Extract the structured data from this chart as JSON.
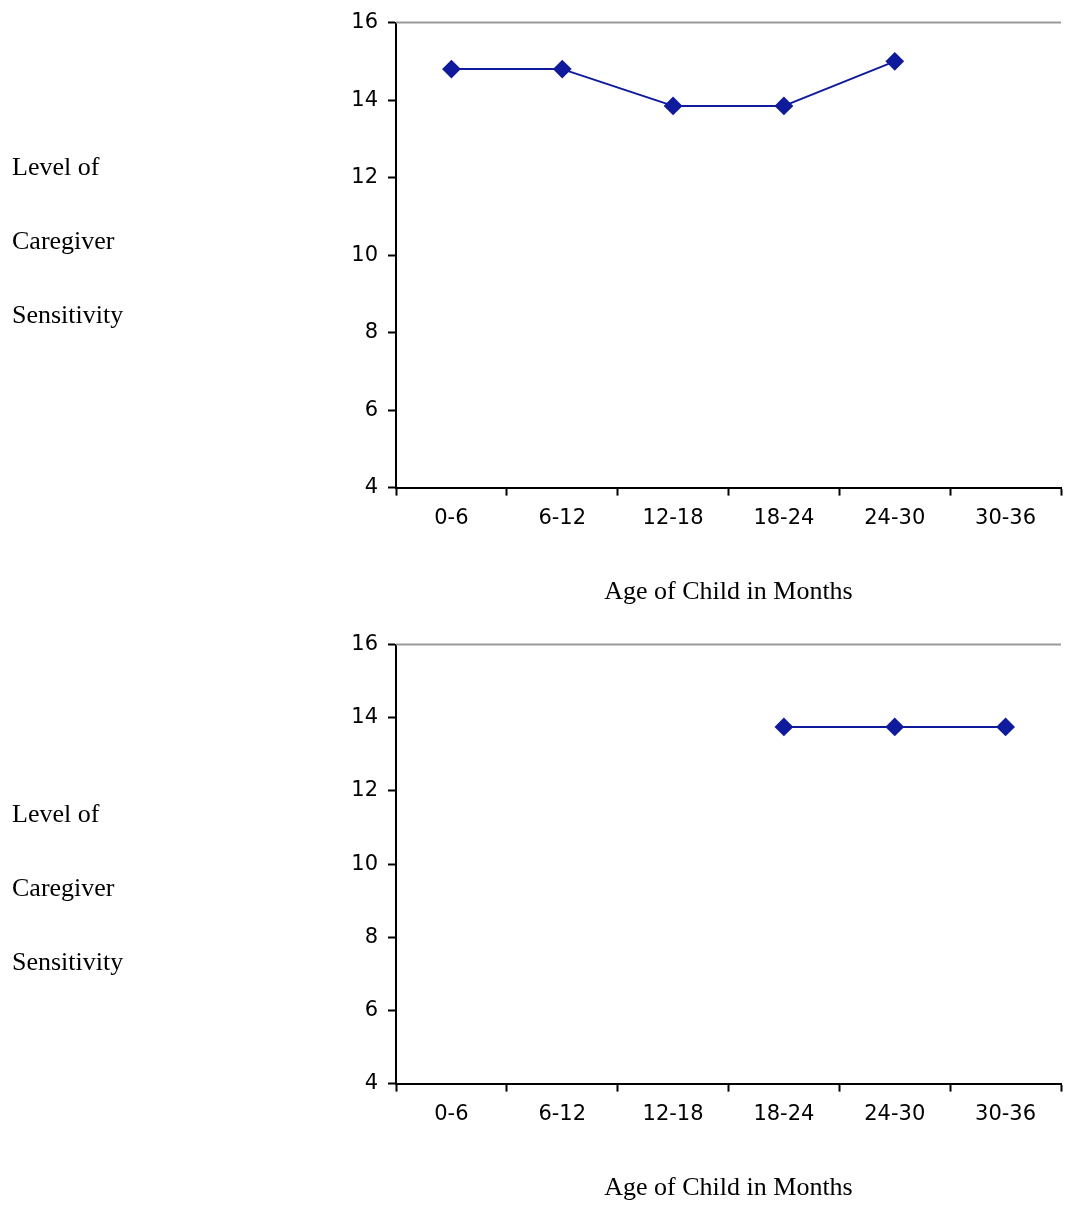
{
  "chart_data": [
    {
      "type": "line",
      "xlabel": "Age of Child in Months",
      "ylabel": "Level of Caregiver Sensitivity",
      "categories": [
        "0-6",
        "6-12",
        "12-18",
        "18-24",
        "24-30",
        "30-36"
      ],
      "ylim": [
        4,
        16
      ],
      "yticks": [
        4,
        6,
        8,
        10,
        12,
        14,
        16
      ],
      "marker": "diamond",
      "series": [
        {
          "color": "#0f1b9c",
          "values": [
            14.8,
            14.8,
            13.85,
            13.85,
            15.0,
            null
          ]
        }
      ]
    },
    {
      "type": "line",
      "xlabel": "Age of Child in Months",
      "ylabel": "Level of Caregiver Sensitivity",
      "categories": [
        "0-6",
        "6-12",
        "12-18",
        "18-24",
        "24-30",
        "30-36"
      ],
      "ylim": [
        4,
        16
      ],
      "yticks": [
        4,
        6,
        8,
        10,
        12,
        14,
        16
      ],
      "marker": "diamond",
      "series": [
        {
          "color": "#0f1b9c",
          "values": [
            null,
            null,
            null,
            13.75,
            13.75,
            13.75
          ]
        }
      ]
    }
  ]
}
